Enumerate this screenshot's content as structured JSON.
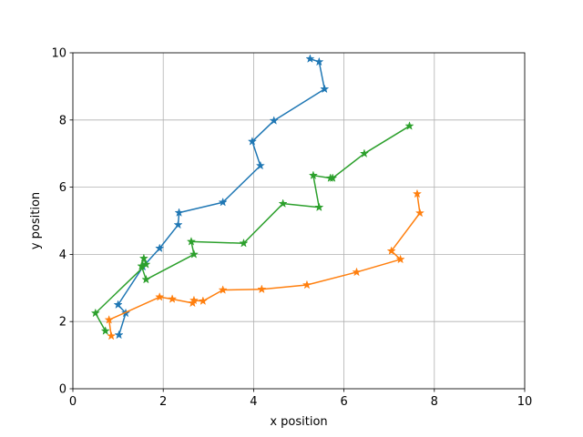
{
  "chart_data": {
    "type": "line",
    "title": "",
    "xlabel": "x position",
    "ylabel": "y position",
    "xlim": [
      0,
      10
    ],
    "ylim": [
      0,
      10
    ],
    "xticks": [
      0,
      2,
      4,
      6,
      8,
      10
    ],
    "yticks": [
      0,
      2,
      4,
      6,
      8,
      10
    ],
    "xtick_labels": [
      "0",
      "2",
      "4",
      "6",
      "8",
      "10"
    ],
    "ytick_labels": [
      "0",
      "2",
      "4",
      "6",
      "8",
      "10"
    ],
    "grid": true,
    "marker": "star",
    "series": [
      {
        "color": "#1f77b4",
        "x": [
          5.25,
          5.45,
          5.57,
          4.45,
          3.97,
          4.15,
          3.32,
          2.35,
          2.33,
          1.92,
          1.55,
          1.0,
          1.17,
          1.02
        ],
        "y": [
          9.82,
          9.73,
          8.92,
          7.98,
          7.36,
          6.64,
          5.55,
          5.24,
          4.88,
          4.18,
          3.63,
          2.5,
          2.25,
          1.6
        ]
      },
      {
        "color": "#ff7f0e",
        "x": [
          7.62,
          7.68,
          7.05,
          7.25,
          6.28,
          5.18,
          4.18,
          3.32,
          2.88,
          2.68,
          2.65,
          2.2,
          1.92,
          0.8,
          0.85
        ],
        "y": [
          5.8,
          5.23,
          4.1,
          3.85,
          3.47,
          3.09,
          2.96,
          2.94,
          2.61,
          2.63,
          2.55,
          2.67,
          2.73,
          2.05,
          1.57
        ]
      },
      {
        "color": "#2ca02c",
        "x": [
          7.45,
          6.45,
          5.75,
          5.7,
          5.32,
          5.45,
          4.65,
          3.78,
          2.62,
          2.68,
          1.62,
          1.52,
          1.57,
          1.62,
          0.5,
          0.72
        ],
        "y": [
          7.82,
          7.0,
          6.27,
          6.27,
          6.35,
          5.4,
          5.51,
          4.33,
          4.38,
          4.0,
          3.25,
          3.65,
          3.88,
          3.7,
          2.25,
          1.72
        ]
      }
    ]
  }
}
